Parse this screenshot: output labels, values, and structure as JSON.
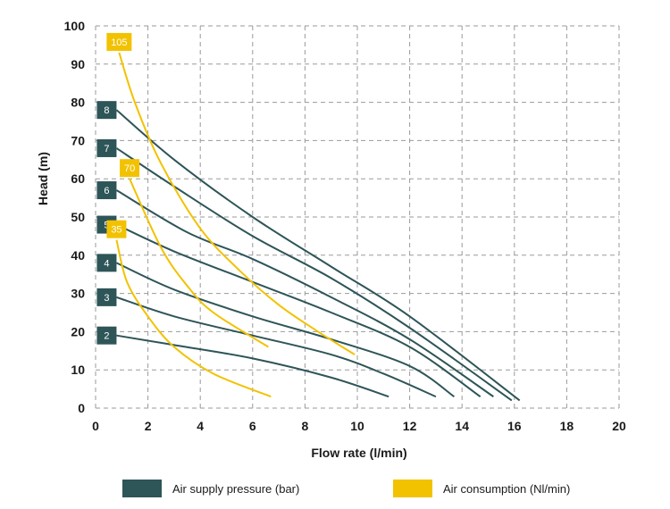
{
  "chart_data": {
    "type": "line",
    "xlabel": "Flow rate (l/min)",
    "ylabel": "Head (m)",
    "xlim": [
      0,
      20
    ],
    "ylim": [
      0,
      100
    ],
    "xticks": [
      "0",
      "2",
      "4",
      "6",
      "8",
      "10",
      "12",
      "14",
      "16",
      "18",
      "20"
    ],
    "yticks": [
      "0",
      "10",
      "20",
      "30",
      "40",
      "50",
      "60",
      "70",
      "80",
      "90",
      "100"
    ],
    "grid": "dashed",
    "legend": [
      {
        "label": "Air supply pressure (bar)",
        "color": "#2e5558"
      },
      {
        "label": "Air consumption (Nl/min)",
        "color": "#f2c200"
      }
    ],
    "pressure_series": [
      {
        "name": "2",
        "points": [
          [
            0.8,
            19
          ],
          [
            3,
            16.5
          ],
          [
            6,
            13
          ],
          [
            9,
            8
          ],
          [
            11.2,
            3
          ]
        ]
      },
      {
        "name": "3",
        "points": [
          [
            0.8,
            29
          ],
          [
            3,
            24
          ],
          [
            6,
            19
          ],
          [
            9,
            14
          ],
          [
            11,
            9
          ],
          [
            13,
            3
          ]
        ]
      },
      {
        "name": "4",
        "points": [
          [
            0.8,
            38
          ],
          [
            3,
            31
          ],
          [
            6,
            24
          ],
          [
            9,
            18
          ],
          [
            12,
            11
          ],
          [
            13.7,
            3
          ]
        ]
      },
      {
        "name": "5",
        "points": [
          [
            0.8,
            48
          ],
          [
            3,
            41
          ],
          [
            6,
            33
          ],
          [
            9,
            25
          ],
          [
            12,
            16
          ],
          [
            14.7,
            3
          ]
        ]
      },
      {
        "name": "6",
        "points": [
          [
            0.8,
            57
          ],
          [
            3.5,
            46
          ],
          [
            6,
            39
          ],
          [
            9,
            29
          ],
          [
            12,
            18
          ],
          [
            15.2,
            3
          ]
        ]
      },
      {
        "name": "7",
        "points": [
          [
            0.8,
            68
          ],
          [
            3,
            58
          ],
          [
            6,
            45
          ],
          [
            9,
            34
          ],
          [
            12,
            21
          ],
          [
            15.9,
            2
          ]
        ]
      },
      {
        "name": "8",
        "points": [
          [
            0.8,
            78
          ],
          [
            3,
            65
          ],
          [
            6,
            50
          ],
          [
            9,
            37
          ],
          [
            12,
            24
          ],
          [
            16.2,
            2
          ]
        ]
      }
    ],
    "consumption_series": [
      {
        "name": "35",
        "points": [
          [
            0.8,
            44
          ],
          [
            1.2,
            33
          ],
          [
            2,
            24
          ],
          [
            3,
            16
          ],
          [
            4.5,
            9
          ],
          [
            6.7,
            3
          ]
        ]
      },
      {
        "name": "70",
        "points": [
          [
            1.3,
            60
          ],
          [
            2.5,
            42
          ],
          [
            3.5,
            32
          ],
          [
            4.5,
            25
          ],
          [
            6.6,
            16
          ]
        ]
      },
      {
        "name": "105",
        "points": [
          [
            0.9,
            93
          ],
          [
            1.5,
            80
          ],
          [
            2.5,
            64
          ],
          [
            4,
            47
          ],
          [
            5.5,
            36
          ],
          [
            7,
            27
          ],
          [
            8.5,
            20
          ],
          [
            9.9,
            14
          ]
        ]
      }
    ]
  },
  "legend": {
    "pressure_label": "Air supply pressure (bar)",
    "consumption_label": "Air consumption (Nl/min)",
    "pressure_color": "#2e5558",
    "consumption_color": "#f2c200"
  }
}
